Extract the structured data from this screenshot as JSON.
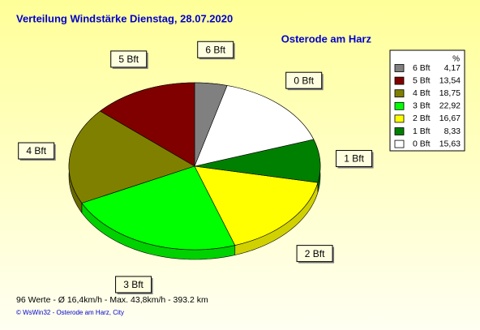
{
  "chart_data": {
    "type": "pie",
    "title": "Verteilung Windstärke  Dienstag, 28.07.2020",
    "subtitle": "Osterode am Harz",
    "legend_title": "%",
    "categories": [
      "6 Bft",
      "5 Bft",
      "4 Bft",
      "3 Bft",
      "2 Bft",
      "1 Bft",
      "0 Bft"
    ],
    "values": [
      4.17,
      13.54,
      18.75,
      22.92,
      16.67,
      8.33,
      15.63
    ],
    "value_labels": [
      "4,17",
      "13,54",
      "18,75",
      "22,92",
      "16,67",
      "8,33",
      "15,63"
    ],
    "colors": [
      "#808080",
      "#800000",
      "#808000",
      "#00ff00",
      "#ffff00",
      "#008000",
      "#ffffff"
    ],
    "legend": "top-right",
    "footer": "96 Werte   -   Ø 16,4km/h   -   Max. 43,8km/h   -   393.2 km",
    "credit": "© WsWin32   -   Osterode am Harz, City"
  }
}
